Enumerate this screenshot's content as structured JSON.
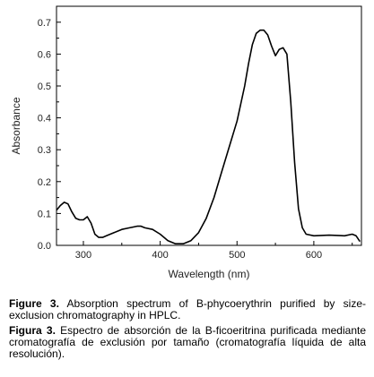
{
  "chart_data": {
    "type": "line",
    "xlabel": "Wavelength (nm)",
    "ylabel": "Absorbance",
    "xlim": [
      265,
      662
    ],
    "ylim": [
      0.0,
      0.75
    ],
    "x_ticks": [
      300,
      400,
      500,
      600
    ],
    "y_ticks": [
      0.0,
      0.1,
      0.2,
      0.3,
      0.4,
      0.5,
      0.6,
      0.7
    ],
    "x_tick_labels": [
      "300",
      "400",
      "500",
      "600"
    ],
    "y_tick_labels": [
      "0.0",
      "0.1",
      "0.2",
      "0.3",
      "0.4",
      "0.5",
      "0.6",
      "0.7"
    ],
    "grid": false,
    "series": [
      {
        "x": [
          265,
          270,
          275,
          280,
          285,
          290,
          295,
          300,
          305,
          310,
          315,
          320,
          325,
          330,
          340,
          350,
          360,
          370,
          375,
          380,
          390,
          400,
          410,
          420,
          430,
          440,
          450,
          460,
          470,
          480,
          490,
          500,
          510,
          515,
          520,
          525,
          530,
          535,
          540,
          545,
          550,
          555,
          560,
          565,
          570,
          575,
          580,
          585,
          590,
          600,
          620,
          640,
          650,
          655,
          660
        ],
        "y": [
          0.11,
          0.125,
          0.135,
          0.13,
          0.105,
          0.085,
          0.08,
          0.08,
          0.09,
          0.07,
          0.035,
          0.025,
          0.025,
          0.03,
          0.04,
          0.05,
          0.055,
          0.06,
          0.06,
          0.055,
          0.05,
          0.035,
          0.015,
          0.005,
          0.005,
          0.015,
          0.04,
          0.085,
          0.15,
          0.23,
          0.31,
          0.39,
          0.5,
          0.57,
          0.63,
          0.665,
          0.675,
          0.675,
          0.66,
          0.625,
          0.595,
          0.615,
          0.62,
          0.6,
          0.45,
          0.26,
          0.115,
          0.055,
          0.035,
          0.03,
          0.032,
          0.03,
          0.035,
          0.03,
          0.012
        ]
      }
    ]
  },
  "caption_en": {
    "label": "Figure 3.",
    "text": " Absorption spectrum of B-phycoerythrin purified by size-exclusion chromatography in HPLC."
  },
  "caption_es": {
    "label": "Figura 3.",
    "text": " Espectro de absorción de la B-ficoeritrina purificada mediante cromatografía de exclusión por tamaño (cromatografía líquida de alta resolución)."
  }
}
